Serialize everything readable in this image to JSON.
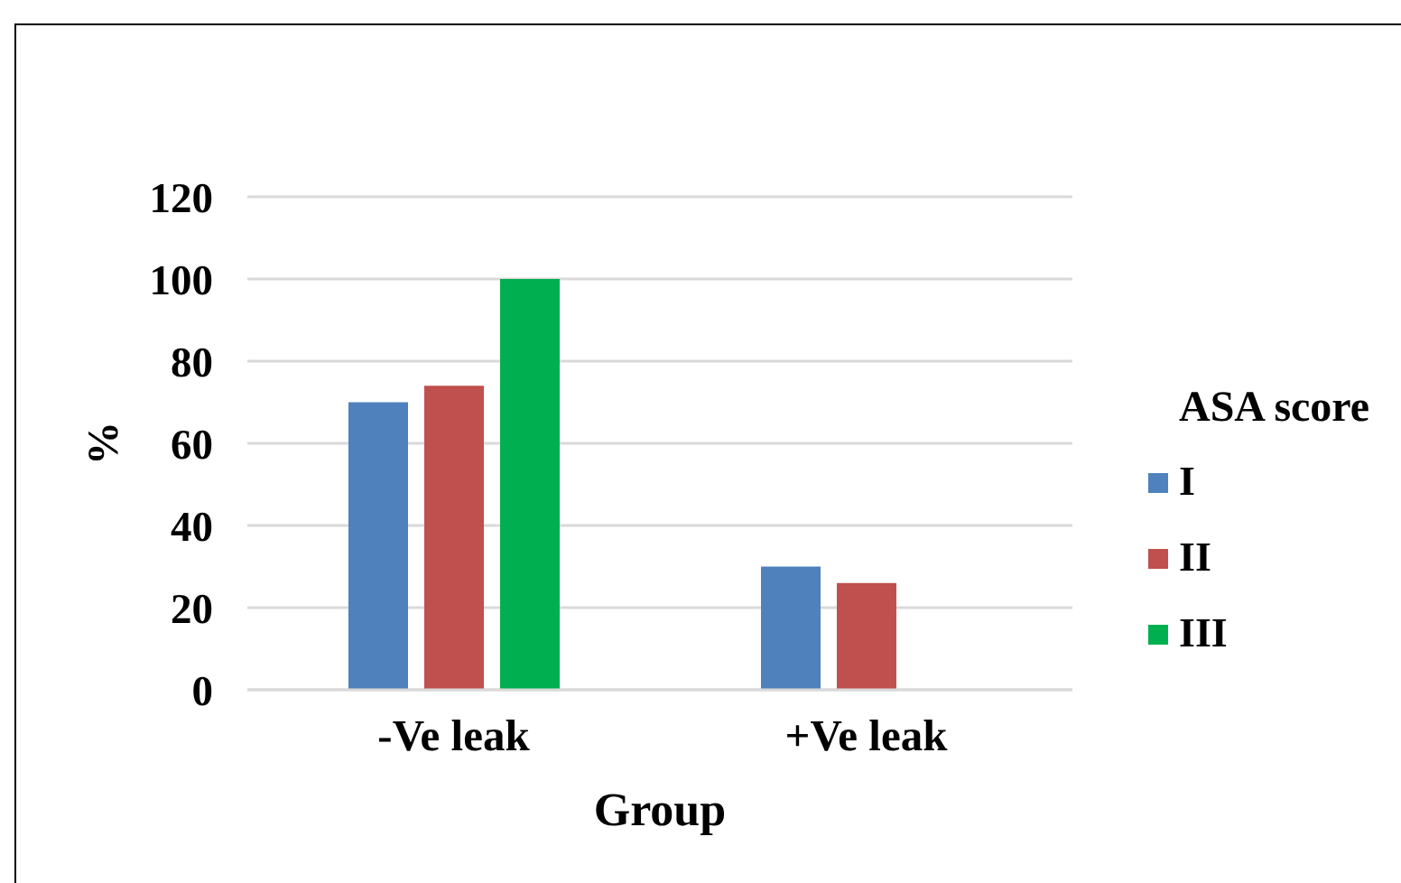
{
  "chart_data": {
    "type": "bar",
    "xlabel": "Group",
    "ylabel": "%",
    "legend_title": "ASA score",
    "categories": [
      "-Ve leak",
      "+Ve leak"
    ],
    "series": [
      {
        "name": "I",
        "color": "#4f81bd",
        "values": [
          70,
          30
        ]
      },
      {
        "name": "II",
        "color": "#c0504d",
        "values": [
          74,
          26
        ]
      },
      {
        "name": "III",
        "color": "#00b050",
        "values": [
          100,
          null
        ]
      }
    ],
    "ylim": [
      0,
      120
    ],
    "yticks": [
      0,
      20,
      40,
      60,
      80,
      100,
      120
    ],
    "grid": "y",
    "legend": "right"
  }
}
